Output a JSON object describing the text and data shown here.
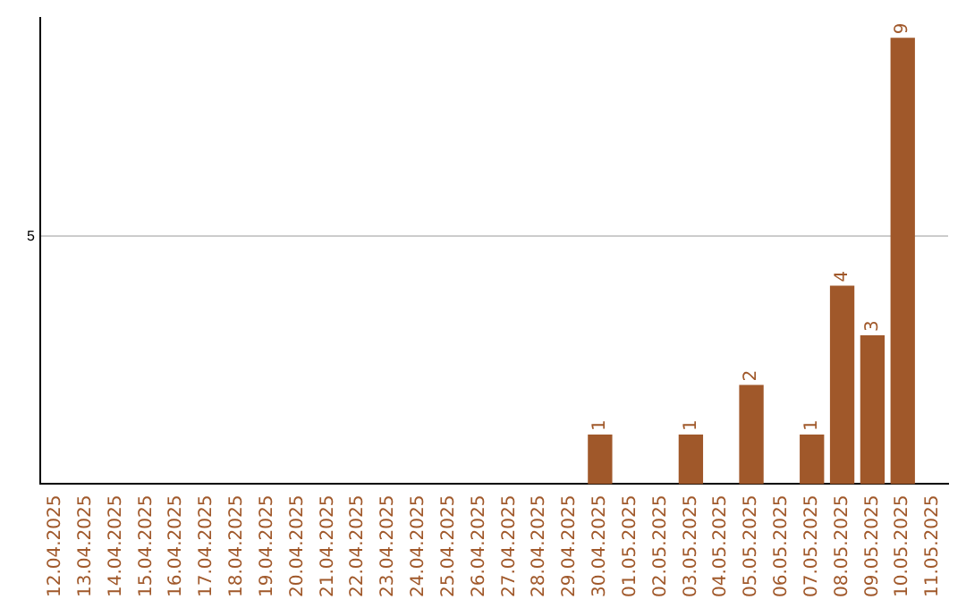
{
  "chart_data": {
    "type": "bar",
    "categories": [
      "12.04.2025",
      "13.04.2025",
      "14.04.2025",
      "15.04.2025",
      "16.04.2025",
      "17.04.2025",
      "18.04.2025",
      "19.04.2025",
      "20.04.2025",
      "21.04.2025",
      "22.04.2025",
      "23.04.2025",
      "24.04.2025",
      "25.04.2025",
      "26.04.2025",
      "27.04.2025",
      "28.04.2025",
      "29.04.2025",
      "30.04.2025",
      "01.05.2025",
      "02.05.2025",
      "03.05.2025",
      "04.05.2025",
      "05.05.2025",
      "06.05.2025",
      "07.05.2025",
      "08.05.2025",
      "09.05.2025",
      "10.05.2025",
      "11.05.2025"
    ],
    "values": [
      null,
      null,
      null,
      null,
      null,
      null,
      null,
      null,
      null,
      null,
      null,
      null,
      null,
      null,
      null,
      null,
      null,
      null,
      1,
      null,
      null,
      1,
      null,
      2,
      null,
      1,
      4,
      3,
      9,
      null
    ],
    "data_labels": true,
    "color": "#a0582a",
    "ylim": [
      0,
      9.4
    ],
    "yticks": [
      5
    ],
    "grid": "y",
    "legend": false
  }
}
